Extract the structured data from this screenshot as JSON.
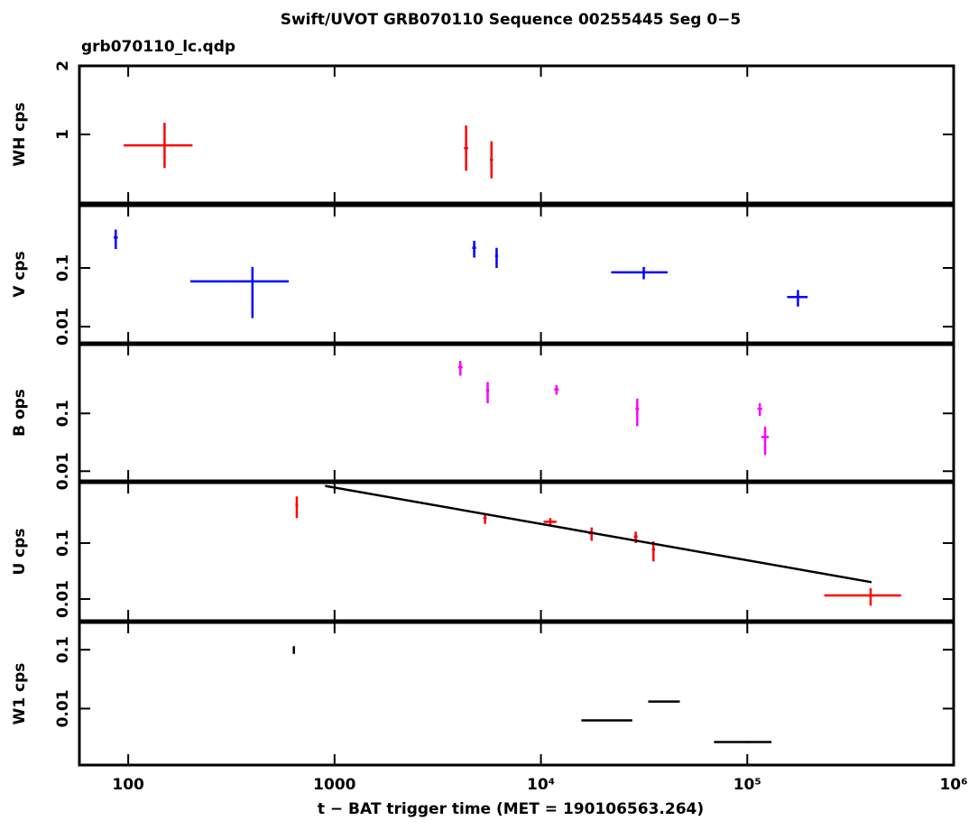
{
  "chart_data": {
    "type": "errorbar",
    "title": "Swift/UVOT GRB070110 Sequence 00255445 Seg 0−5",
    "subtitle": "grb070110_lc.qdp",
    "x_label": "t − BAT trigger time (MET = 190106563.264)",
    "xscale": "log",
    "xlim": [
      58,
      1000000
    ],
    "xticks": [
      100,
      1000,
      {
        "value": 10000,
        "label": "10⁴"
      },
      {
        "value": 100000,
        "label": "10⁵"
      },
      {
        "value": 1000000,
        "label": "10⁶"
      }
    ],
    "panels": [
      {
        "y_label": "WH cps",
        "yscale": "linear",
        "ylim": [
          0,
          2
        ],
        "yticks": [
          1,
          2
        ],
        "series": [
          {
            "type": "errorbar",
            "color": "#ff0000",
            "x": [
              150,
              4340,
              5760
            ],
            "xerr": [
              55,
              100,
              100
            ],
            "y": [
              0.84,
              0.8,
              0.63
            ],
            "yerr": [
              0.33,
              0.33,
              0.27
            ]
          }
        ]
      },
      {
        "y_label": "V cps",
        "yscale": "log",
        "ylim": [
          0.0053,
          1.15
        ],
        "yticks": [
          0.01,
          0.1
        ],
        "series": [
          {
            "type": "errorbar",
            "color": "#0000ff",
            "x": [
              87,
              400,
              4750,
              6100,
              31500,
              176000
            ],
            "xerr": [
              2,
              200,
              100,
              100,
              9600,
              20000
            ],
            "y": [
              0.33,
              0.059,
              0.22,
              0.16,
              0.084,
              0.032
            ],
            "yerr": [
              0.12,
              0.045,
              0.07,
              0.06,
              0.02,
              0.01
            ]
          }
        ]
      },
      {
        "y_label": "B ops",
        "yscale": "log",
        "ylim": [
          0.0068,
          1.55
        ],
        "yticks": [
          0.01,
          0.1
        ],
        "series": [
          {
            "type": "errorbar",
            "color": "#ff00ff",
            "x": [
              4070,
              5520,
              11900,
              29300,
              115000,
              122000
            ],
            "xerr": [
              100,
              100,
              300,
              600,
              3000,
              5000
            ],
            "y": [
              0.63,
              0.25,
              0.26,
              0.12,
              0.12,
              0.039
            ],
            "yerr": [
              0.18,
              0.1,
              0.05,
              0.06,
              0.03,
              0.02
            ]
          }
        ]
      },
      {
        "y_label": "U cps",
        "yscale": "log",
        "ylim": [
          0.0041,
          1.2
        ],
        "yticks": [
          0.01,
          0.1
        ],
        "series": [
          {
            "type": "errorbar",
            "color": "#ff0000",
            "x": [
              656,
              5360,
              11100,
              17600,
              28800,
              35100,
              396000
            ],
            "xerr": [
              10,
              100,
              800,
              600,
              600,
              600,
              160000
            ],
            "y": [
              0.48,
              0.28,
              0.24,
              0.15,
              0.13,
              0.077,
              0.0116
            ],
            "yerr": [
              0.2,
              0.06,
              0.04,
              0.04,
              0.03,
              0.03,
              0.004
            ]
          },
          {
            "type": "line",
            "color": "#000000",
            "x": [
              900,
              400000
            ],
            "y": [
              1.05,
              0.02
            ]
          }
        ]
      },
      {
        "y_label": "W1 cps",
        "yscale": "log",
        "ylim": [
          0.0011,
          0.29
        ],
        "yticks": [
          0.01,
          0.1
        ],
        "series": [
          {
            "type": "errorbar",
            "color": "#000000",
            "x": [
              635,
              21700,
              40100,
              100000
            ],
            "xerr": [
              5,
              6000,
              7000,
              31000
            ],
            "y": [
              0.1,
              0.0063,
              0.0132,
              0.0027
            ],
            "yerr": [
              0.015,
              0.0002,
              0.0004,
              0.0001
            ]
          }
        ]
      }
    ]
  }
}
